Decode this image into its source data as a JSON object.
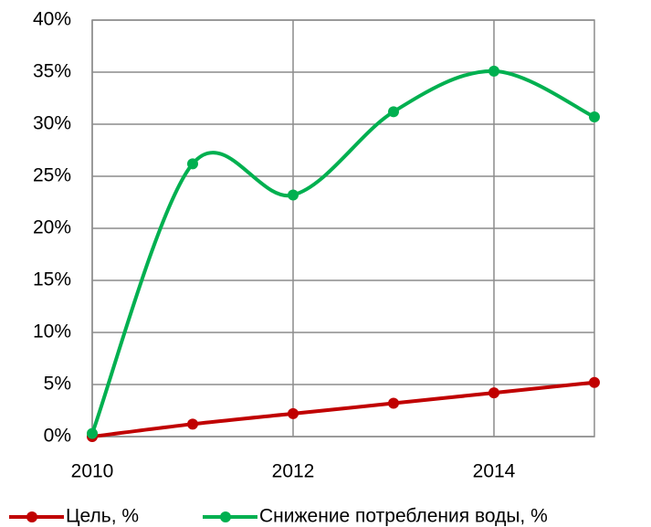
{
  "chart_data": {
    "type": "line",
    "x": [
      2010,
      2011,
      2012,
      2013,
      2014,
      2015
    ],
    "series": [
      {
        "name": "Цель, %",
        "color": "#c00000",
        "values": [
          0,
          1.2,
          2.2,
          3.2,
          4.2,
          5.2
        ]
      },
      {
        "name": "Снижение потребления воды, %",
        "color": "#00b050",
        "values": [
          0.3,
          26.2,
          23.2,
          31.2,
          35.1,
          30.7
        ]
      }
    ],
    "xlim": [
      2010,
      2015
    ],
    "xticks": [
      2010,
      2012,
      2014
    ],
    "ylim": [
      0,
      40
    ],
    "yticks": [
      {
        "value": 0,
        "label": "0%"
      },
      {
        "value": 5,
        "label": "5%"
      },
      {
        "value": 10,
        "label": "10%"
      },
      {
        "value": 15,
        "label": "15%"
      },
      {
        "value": 20,
        "label": "20%"
      },
      {
        "value": 25,
        "label": "25%"
      },
      {
        "value": 30,
        "label": "30%"
      },
      {
        "value": 35,
        "label": "35%"
      },
      {
        "value": 40,
        "label": "40%"
      }
    ],
    "grid": true,
    "smooth": true,
    "legend": "bottom"
  }
}
